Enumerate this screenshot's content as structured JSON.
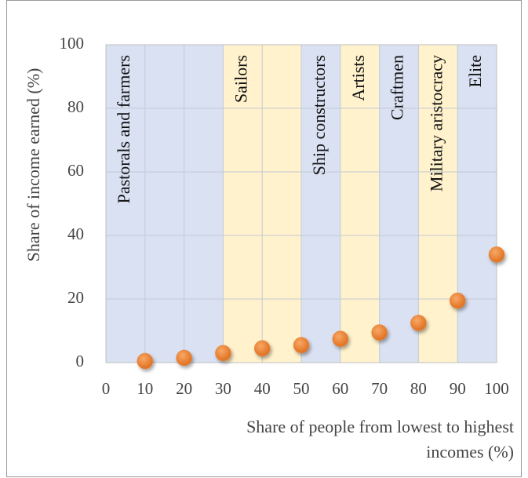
{
  "chart_data": {
    "type": "scatter",
    "ylabel": "Share of income earned  (%)",
    "xlabel_lines": [
      "Share of people from lowest to highest",
      "incomes (%)"
    ],
    "x": [
      10,
      20,
      30,
      40,
      50,
      60,
      70,
      80,
      90,
      100
    ],
    "values": [
      0.5,
      1.5,
      3,
      4.5,
      5.5,
      7.5,
      9.5,
      12.5,
      19.5,
      34
    ],
    "color": "#ee8437",
    "xlim": [
      0,
      100
    ],
    "xticks": [
      0,
      10,
      20,
      30,
      40,
      50,
      60,
      70,
      80,
      90,
      100
    ],
    "ylim": [
      0,
      100
    ],
    "yticks": [
      0,
      20,
      40,
      60,
      80,
      100
    ],
    "grid": true,
    "bands": [
      {
        "label": "Pastorals and farmers",
        "start": 0,
        "end": 30,
        "color": "#d9e1f2"
      },
      {
        "label": "Sailors",
        "start": 30,
        "end": 50,
        "color": "#fff2cc"
      },
      {
        "label": "Ship constructors",
        "start": 50,
        "end": 60,
        "color": "#d9e1f2"
      },
      {
        "label": "Artists",
        "start": 60,
        "end": 70,
        "color": "#fff2cc"
      },
      {
        "label": "Craftmen",
        "start": 70,
        "end": 80,
        "color": "#d9e1f2"
      },
      {
        "label": "Military aristocracy",
        "start": 80,
        "end": 90,
        "color": "#fff2cc"
      },
      {
        "label": "Elite",
        "start": 90,
        "end": 100,
        "color": "#d9e1f2"
      }
    ]
  }
}
